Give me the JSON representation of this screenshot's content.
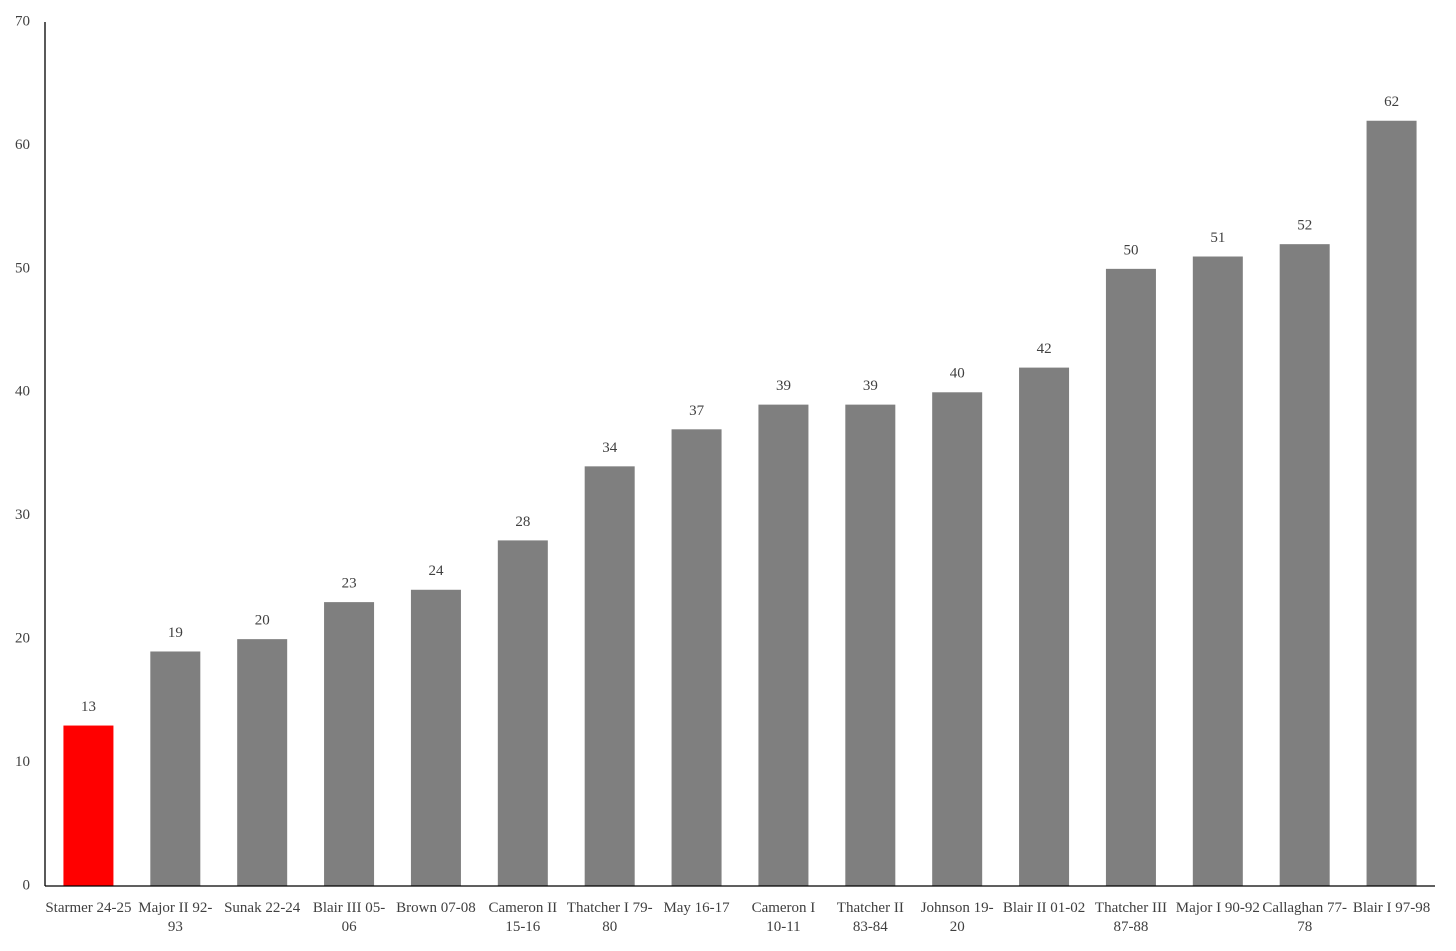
{
  "chart_data": {
    "type": "bar",
    "categories": [
      "Starmer 24-25",
      "Major II 92-93",
      "Sunak 22-24",
      "Blair III 05-06",
      "Brown 07-08",
      "Cameron II 15-16",
      "Thatcher I 79-80",
      "May 16-17",
      "Cameron I 10-11",
      "Thatcher II 83-84",
      "Johnson 19-20",
      "Blair II 01-02",
      "Thatcher III 87-88",
      "Major I 90-92",
      "Callaghan 77-78",
      "Blair I 97-98"
    ],
    "values": [
      13,
      19,
      20,
      23,
      24,
      28,
      34,
      37,
      39,
      39,
      40,
      42,
      50,
      51,
      52,
      62
    ],
    "colors": [
      "#ff0000",
      "#7f7f7f",
      "#7f7f7f",
      "#7f7f7f",
      "#7f7f7f",
      "#7f7f7f",
      "#7f7f7f",
      "#7f7f7f",
      "#7f7f7f",
      "#7f7f7f",
      "#7f7f7f",
      "#7f7f7f",
      "#7f7f7f",
      "#7f7f7f",
      "#7f7f7f",
      "#7f7f7f"
    ],
    "ylim": [
      0,
      70
    ],
    "yticks": [
      0,
      10,
      20,
      30,
      40,
      50,
      60,
      70
    ],
    "grid": false
  }
}
